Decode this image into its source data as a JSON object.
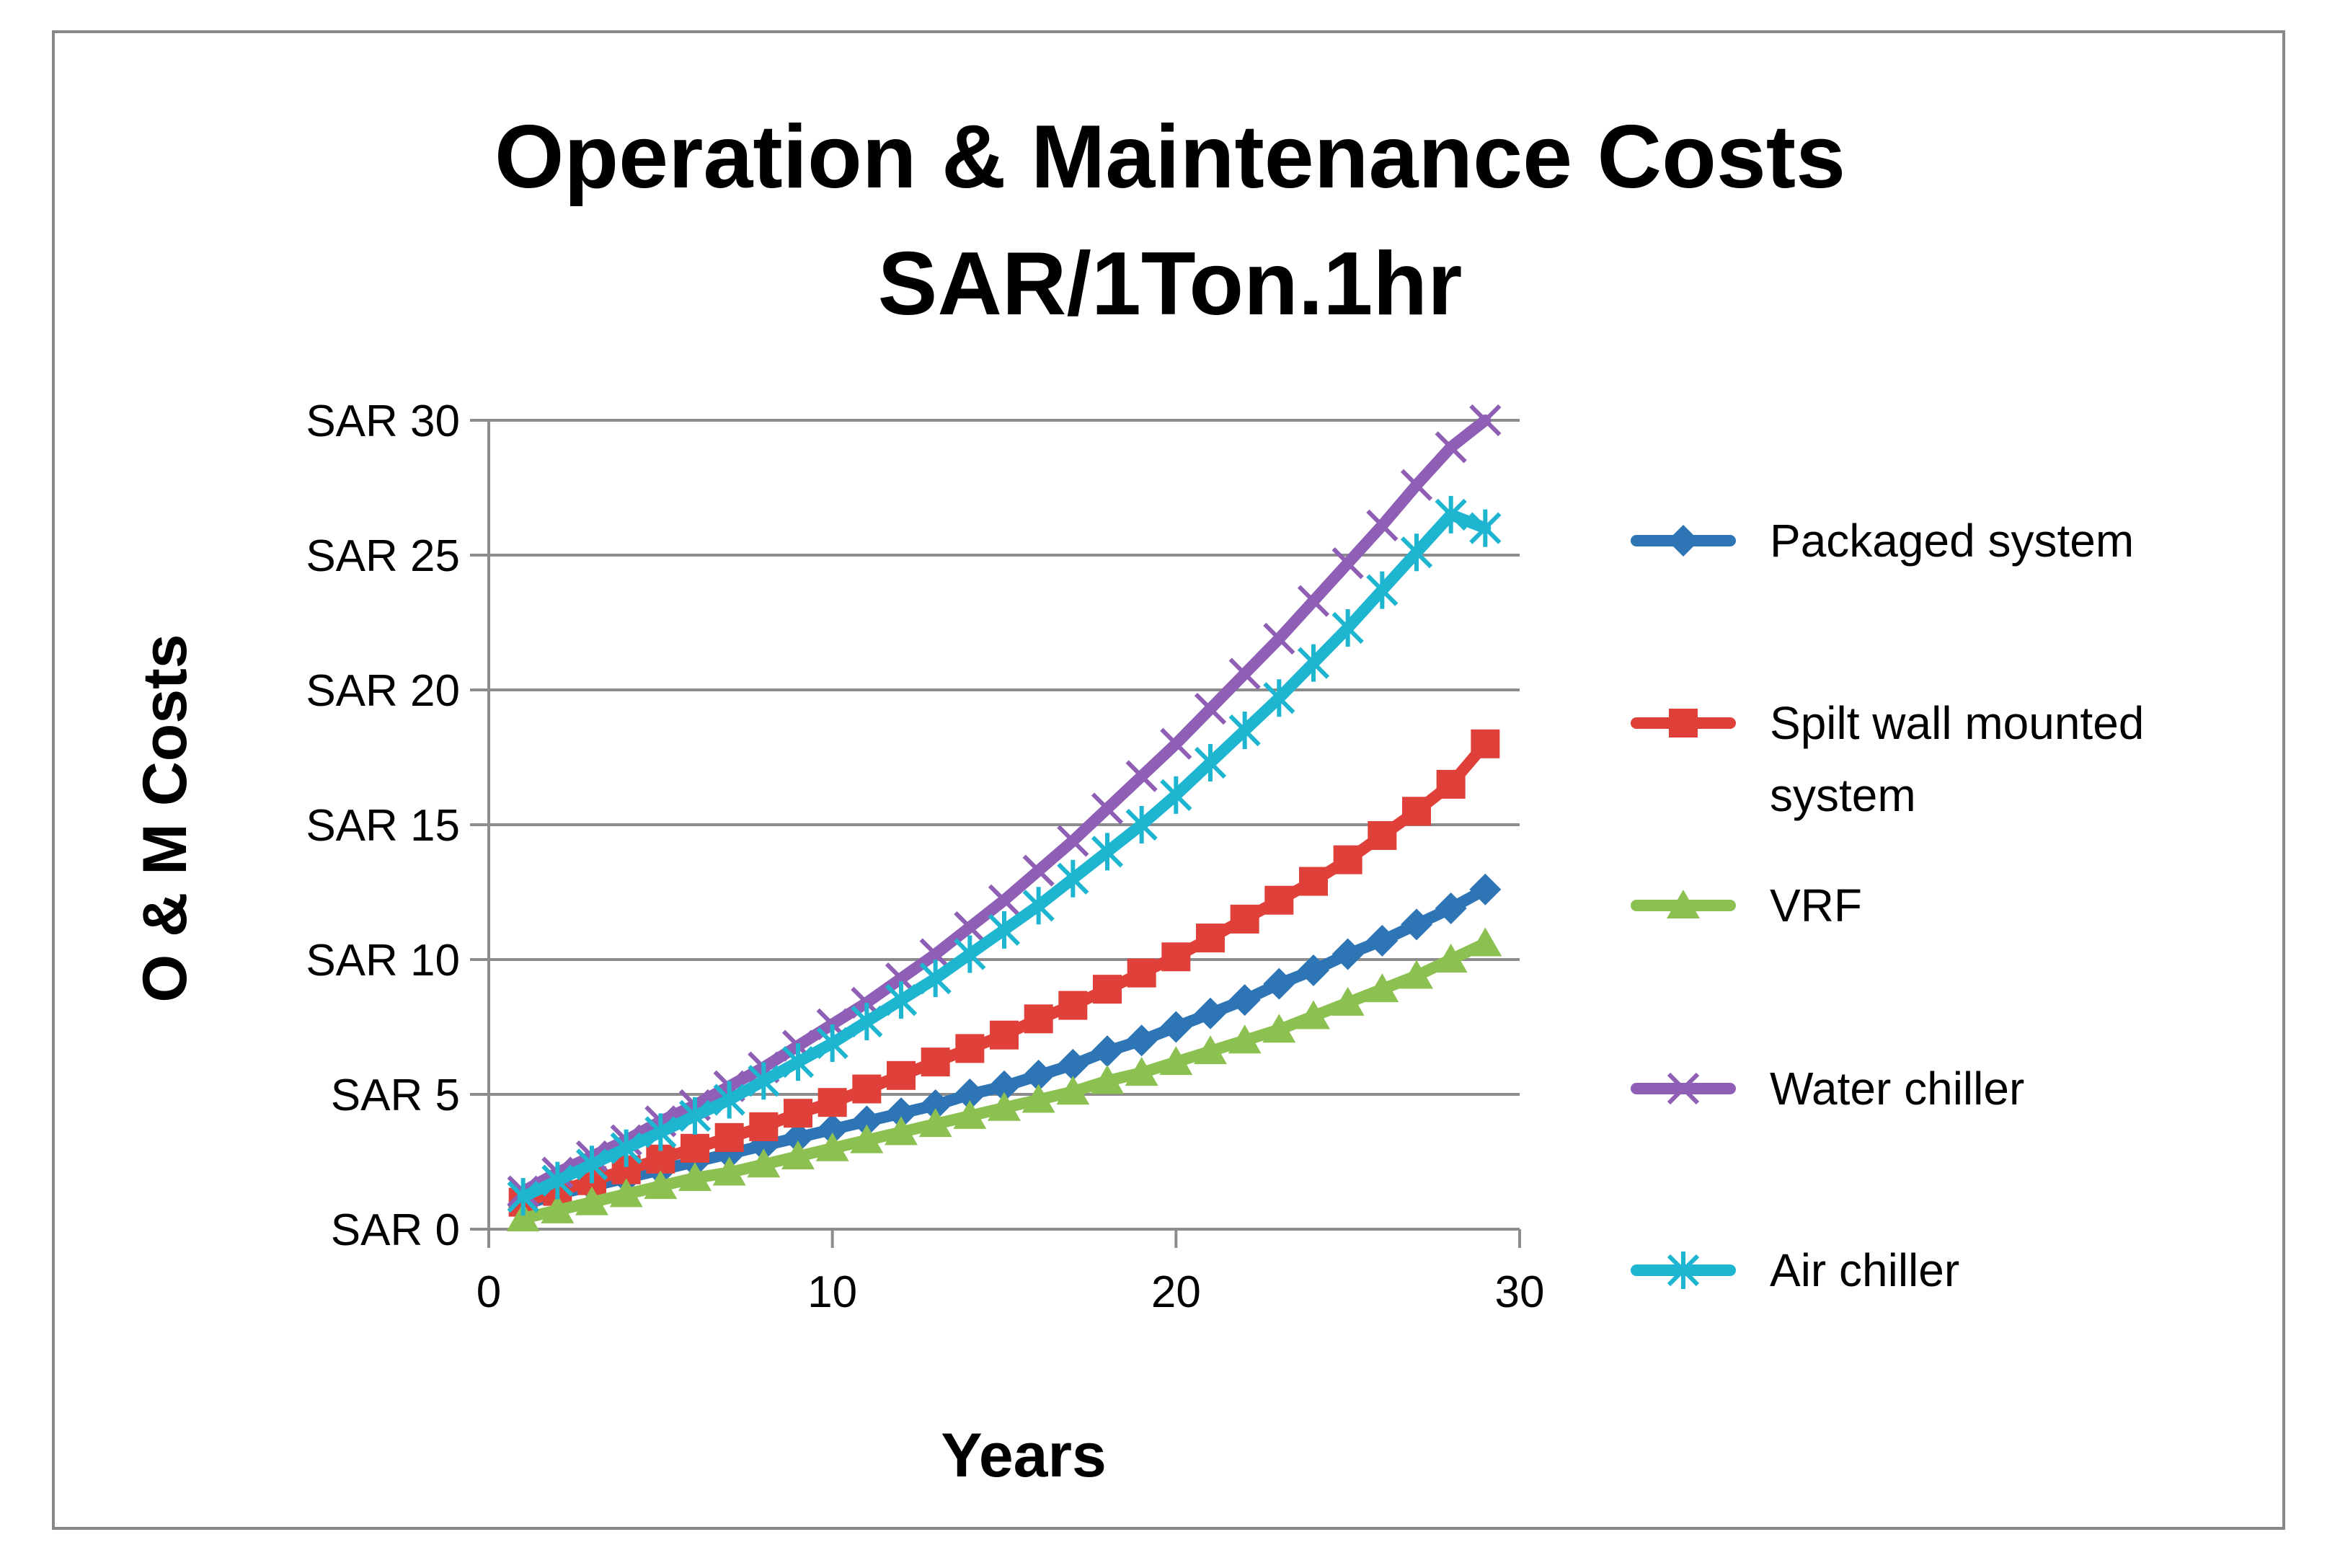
{
  "chart_data": {
    "type": "line",
    "title": [
      "Operation & Maintenance Costs",
      "SAR/1Ton.1hr"
    ],
    "xlabel": "Years",
    "ylabel": "O & M Costs",
    "xlim": [
      0,
      30
    ],
    "ylim": [
      0,
      30
    ],
    "x_ticks": [
      0,
      10,
      20,
      30
    ],
    "y_ticks": [
      0,
      5,
      10,
      15,
      20,
      25,
      30
    ],
    "y_tick_labels": [
      "SAR 0",
      "SAR 5",
      "SAR 10",
      "SAR 15",
      "SAR 20",
      "SAR 25",
      "SAR 30"
    ],
    "grid": "horizontal",
    "legend_position": "right",
    "x": [
      1,
      2,
      3,
      4,
      5,
      6,
      7,
      8,
      9,
      10,
      11,
      12,
      13,
      14,
      15,
      16,
      17,
      18,
      19,
      20,
      21,
      22,
      23,
      24,
      25,
      26,
      27,
      28,
      29
    ],
    "series": [
      {
        "name": "Packaged system",
        "label_lines": [
          "Packaged system"
        ],
        "color": "#2E75B6",
        "marker": "diamond",
        "values": [
          0.9,
          1.3,
          1.6,
          1.9,
          2.2,
          2.5,
          2.8,
          3.1,
          3.4,
          3.7,
          4.0,
          4.3,
          4.6,
          5.0,
          5.3,
          5.7,
          6.1,
          6.6,
          7.0,
          7.5,
          8.0,
          8.5,
          9.1,
          9.6,
          10.2,
          10.7,
          11.3,
          11.9,
          12.6
        ]
      },
      {
        "name": "Spilt wall mounted system",
        "label_lines": [
          "Spilt wall mounted",
          "system"
        ],
        "color": "#E0403A",
        "marker": "square",
        "values": [
          1.0,
          1.4,
          1.8,
          2.2,
          2.6,
          3.0,
          3.4,
          3.8,
          4.3,
          4.7,
          5.2,
          5.7,
          6.2,
          6.7,
          7.2,
          7.8,
          8.3,
          8.9,
          9.5,
          10.1,
          10.8,
          11.5,
          12.2,
          12.9,
          13.7,
          14.6,
          15.5,
          16.5,
          18.0
        ]
      },
      {
        "name": "VRF",
        "label_lines": [
          "VRF"
        ],
        "color": "#8CC152",
        "marker": "triangle",
        "values": [
          0.4,
          0.7,
          1.0,
          1.3,
          1.6,
          1.9,
          2.1,
          2.4,
          2.7,
          3.0,
          3.3,
          3.6,
          3.9,
          4.2,
          4.5,
          4.8,
          5.1,
          5.5,
          5.8,
          6.2,
          6.6,
          7.0,
          7.4,
          7.9,
          8.4,
          8.9,
          9.4,
          10.0,
          10.6
        ]
      },
      {
        "name": "Water chiller",
        "label_lines": [
          "Water chiller"
        ],
        "color": "#8E5FB5",
        "marker": "x",
        "values": [
          1.4,
          2.1,
          2.7,
          3.3,
          4.0,
          4.6,
          5.3,
          6.0,
          6.8,
          7.6,
          8.4,
          9.3,
          10.2,
          11.2,
          12.2,
          13.3,
          14.4,
          15.6,
          16.8,
          18.0,
          19.3,
          20.6,
          21.9,
          23.3,
          24.7,
          26.1,
          27.6,
          29.0,
          30.0
        ]
      },
      {
        "name": "Air chiller",
        "label_lines": [
          "Air chiller"
        ],
        "color": "#1EB5D0",
        "marker": "star",
        "values": [
          1.2,
          1.8,
          2.4,
          3.0,
          3.6,
          4.2,
          4.8,
          5.5,
          6.2,
          6.9,
          7.7,
          8.5,
          9.3,
          10.2,
          11.1,
          12.0,
          13.0,
          14.0,
          15.0,
          16.1,
          17.3,
          18.5,
          19.7,
          21.0,
          22.3,
          23.7,
          25.1,
          26.5,
          26.0
        ]
      }
    ]
  }
}
